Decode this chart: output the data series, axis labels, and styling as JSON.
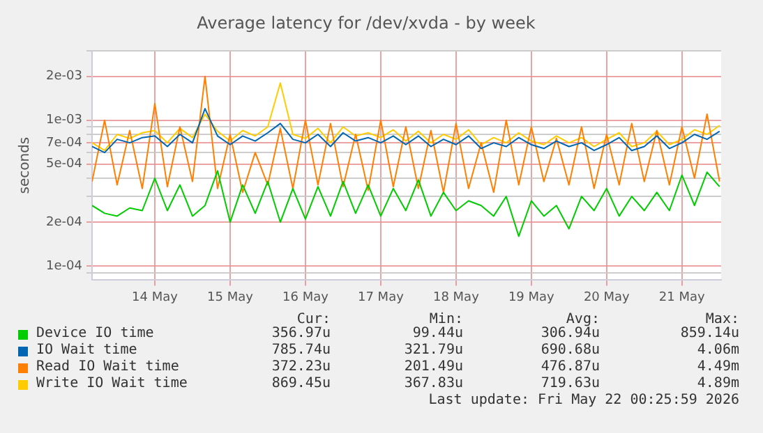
{
  "chart_data": {
    "type": "line",
    "title": "Average latency for /dev/xvda - by week",
    "ylabel": "seconds",
    "x": [
      "2026-05-13T04:00",
      "2026-05-13T08:00",
      "2026-05-13T12:00",
      "2026-05-13T16:00",
      "2026-05-13T20:00",
      "2026-05-14T00:00",
      "2026-05-14T04:00",
      "2026-05-14T08:00",
      "2026-05-14T12:00",
      "2026-05-14T16:00",
      "2026-05-14T20:00",
      "2026-05-15T00:00",
      "2026-05-15T04:00",
      "2026-05-15T08:00",
      "2026-05-15T12:00",
      "2026-05-15T16:00",
      "2026-05-15T20:00",
      "2026-05-16T00:00",
      "2026-05-16T04:00",
      "2026-05-16T08:00",
      "2026-05-16T12:00",
      "2026-05-16T16:00",
      "2026-05-16T20:00",
      "2026-05-17T00:00",
      "2026-05-17T04:00",
      "2026-05-17T08:00",
      "2026-05-17T12:00",
      "2026-05-17T16:00",
      "2026-05-17T20:00",
      "2026-05-18T00:00",
      "2026-05-18T04:00",
      "2026-05-18T08:00",
      "2026-05-18T12:00",
      "2026-05-18T16:00",
      "2026-05-18T20:00",
      "2026-05-19T00:00",
      "2026-05-19T04:00",
      "2026-05-19T08:00",
      "2026-05-19T12:00",
      "2026-05-19T16:00",
      "2026-05-19T20:00",
      "2026-05-20T00:00",
      "2026-05-20T04:00",
      "2026-05-20T08:00",
      "2026-05-20T12:00",
      "2026-05-20T16:00",
      "2026-05-20T20:00",
      "2026-05-21T00:00",
      "2026-05-21T04:00",
      "2026-05-21T08:00",
      "2026-05-21T12:00"
    ],
    "series": [
      {
        "name": "Device IO time",
        "color": "#00cc00",
        "values": [
          0.00026,
          0.00023,
          0.00022,
          0.00025,
          0.00024,
          0.0004,
          0.00024,
          0.00036,
          0.00022,
          0.00026,
          0.00045,
          0.0002,
          0.00036,
          0.00023,
          0.00038,
          0.0002,
          0.00034,
          0.00021,
          0.00035,
          0.00022,
          0.00038,
          0.00023,
          0.00036,
          0.00022,
          0.00034,
          0.00024,
          0.00039,
          0.00022,
          0.00032,
          0.00024,
          0.00028,
          0.00026,
          0.00022,
          0.0003,
          0.00016,
          0.00028,
          0.00022,
          0.00026,
          0.00018,
          0.0003,
          0.00024,
          0.00034,
          0.00022,
          0.0003,
          0.00024,
          0.00032,
          0.00024,
          0.00042,
          0.00026,
          0.00044,
          0.00035
        ]
      },
      {
        "name": "IO Wait time",
        "color": "#0066b3",
        "values": [
          0.00066,
          0.0006,
          0.00074,
          0.0007,
          0.00076,
          0.00078,
          0.00066,
          0.0008,
          0.0007,
          0.0012,
          0.00078,
          0.00068,
          0.00078,
          0.00072,
          0.00082,
          0.00095,
          0.00074,
          0.0007,
          0.0008,
          0.00066,
          0.00082,
          0.00072,
          0.00076,
          0.0007,
          0.00078,
          0.00068,
          0.00078,
          0.00066,
          0.00074,
          0.00068,
          0.00078,
          0.00064,
          0.0007,
          0.00066,
          0.00076,
          0.00068,
          0.00064,
          0.00072,
          0.00066,
          0.0007,
          0.00062,
          0.00068,
          0.00076,
          0.00062,
          0.00066,
          0.00078,
          0.00064,
          0.0007,
          0.0008,
          0.00074,
          0.00084
        ]
      },
      {
        "name": "Read IO Wait time",
        "color": "#ff8000",
        "values": [
          0.00038,
          0.001,
          0.00036,
          0.00085,
          0.00034,
          0.0013,
          0.00035,
          0.0009,
          0.00038,
          0.002,
          0.00034,
          0.0008,
          0.00032,
          0.0006,
          0.00036,
          0.00088,
          0.00034,
          0.001,
          0.00036,
          0.00095,
          0.00035,
          0.0008,
          0.00033,
          0.001,
          0.00035,
          0.0009,
          0.00034,
          0.00085,
          0.00032,
          0.00095,
          0.00034,
          0.0007,
          0.00032,
          0.001,
          0.00036,
          0.0009,
          0.00038,
          0.00075,
          0.00036,
          0.0009,
          0.00034,
          0.0008,
          0.00036,
          0.00095,
          0.00038,
          0.00085,
          0.00036,
          0.0009,
          0.0004,
          0.0011,
          0.00038
        ]
      },
      {
        "name": "Write IO Wait time",
        "color": "#ffcc00",
        "values": [
          0.0007,
          0.00062,
          0.0008,
          0.00075,
          0.00082,
          0.00085,
          0.0007,
          0.00088,
          0.00076,
          0.0011,
          0.00084,
          0.00072,
          0.00085,
          0.00078,
          0.0009,
          0.0018,
          0.0008,
          0.00075,
          0.00088,
          0.0007,
          0.0009,
          0.00078,
          0.00082,
          0.00076,
          0.00086,
          0.00072,
          0.00084,
          0.0007,
          0.0008,
          0.00074,
          0.00086,
          0.00068,
          0.00076,
          0.0007,
          0.00082,
          0.00072,
          0.00068,
          0.00078,
          0.0007,
          0.00076,
          0.00066,
          0.00074,
          0.00082,
          0.00066,
          0.0007,
          0.00084,
          0.00068,
          0.00074,
          0.00086,
          0.0008,
          0.00092
        ]
      }
    ],
    "xlim": [
      "2026-05-13T04:00",
      "2026-05-21T12:30"
    ],
    "xticks": [
      {
        "value": "2026-05-14",
        "label": "14 May"
      },
      {
        "value": "2026-05-15",
        "label": "15 May"
      },
      {
        "value": "2026-05-16",
        "label": "16 May"
      },
      {
        "value": "2026-05-17",
        "label": "17 May"
      },
      {
        "value": "2026-05-18",
        "label": "18 May"
      },
      {
        "value": "2026-05-19",
        "label": "19 May"
      },
      {
        "value": "2026-05-20",
        "label": "20 May"
      },
      {
        "value": "2026-05-21",
        "label": "21 May"
      }
    ],
    "ylim": [
      8e-05,
      0.003
    ],
    "yticks": [
      {
        "value": 9e-05,
        "label": null
      },
      {
        "value": 0.0001,
        "label": "1e-04"
      },
      {
        "value": 0.0002,
        "label": "2e-04"
      },
      {
        "value": 0.0003,
        "label": null
      },
      {
        "value": 0.0004,
        "label": null
      },
      {
        "value": 0.0005,
        "label": "5e-04"
      },
      {
        "value": 0.0006,
        "label": null
      },
      {
        "value": 0.0007,
        "label": "7e-04"
      },
      {
        "value": 0.0008,
        "label": null
      },
      {
        "value": 0.0009,
        "label": null
      },
      {
        "value": 0.001,
        "label": "1e-03"
      },
      {
        "value": 0.002,
        "label": "2e-03"
      },
      {
        "value": 0.003,
        "label": null
      }
    ],
    "log": true,
    "grid": true,
    "legend": "bottom",
    "marker": "none",
    "line_style": "solid",
    "annotations": [
      "Cur:",
      "Min:",
      "Avg:",
      "Max:",
      "356.97u",
      "99.44u",
      "306.94u",
      "859.14u",
      "785.74u",
      "321.79u",
      "690.68u",
      "4.06m",
      "372.23u",
      "201.49u",
      "476.87u",
      "4.49m",
      "869.45u",
      "367.83u",
      "719.63u",
      "4.89m",
      "Last update: Fri May 22 00:25:59 2026"
    ]
  }
}
